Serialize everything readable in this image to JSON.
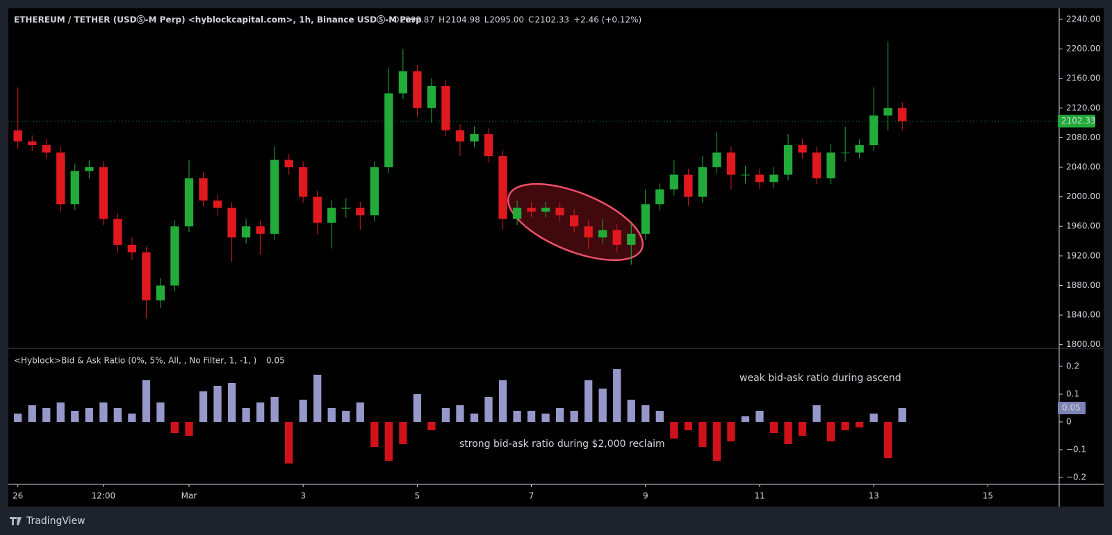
{
  "chart_data": [
    {
      "type": "candlestick",
      "title": "ETHEREUM / TETHER (USDⓈ-M Perp) <hyblockcapital.com>, 1h, Binance USDⓈ-M Perp",
      "ohlc_header": [
        {
          "key": "O",
          "text": "2099.87"
        },
        {
          "key": "H",
          "text": "2104.98"
        },
        {
          "key": "L",
          "text": "2095.00"
        },
        {
          "key": "C",
          "text": "2102.33"
        }
      ],
      "change": "+2.46 (+0.12%)",
      "x": [
        0,
        6,
        12,
        18,
        24,
        30,
        36,
        42,
        48,
        54,
        60,
        66,
        72,
        78,
        84,
        90,
        96,
        102,
        108,
        114,
        120,
        126,
        132,
        138,
        144,
        150,
        156,
        162,
        168,
        174,
        180,
        186,
        192,
        198,
        204,
        210,
        216,
        222,
        228,
        234,
        240,
        246,
        252,
        258,
        264,
        270,
        276,
        282,
        288,
        294,
        300,
        306,
        312,
        318,
        324,
        330,
        336,
        342,
        348,
        354,
        360,
        366,
        372
      ],
      "open": [
        2090,
        2075,
        2070,
        2060,
        1990,
        2035,
        2040,
        1970,
        1935,
        1925,
        1860,
        1880,
        1960,
        2025,
        1995,
        1985,
        1945,
        1960,
        1950,
        2050,
        2040,
        2000,
        1965,
        1985,
        1985,
        1975,
        2040,
        2140,
        2170,
        2120,
        2150,
        2090,
        2075,
        2085,
        2055,
        1970,
        1985,
        1980,
        1985,
        1975,
        1960,
        1945,
        1955,
        1935,
        1950,
        1990,
        2010,
        2030,
        2000,
        2040,
        2060,
        2030,
        2030,
        2020,
        2030,
        2070,
        2060,
        2025,
        2060,
        2060,
        2070,
        2110,
        2120
      ],
      "high": [
        2148,
        2083,
        2078,
        2068,
        2045,
        2050,
        2048,
        1978,
        1945,
        1932,
        1890,
        1968,
        2050,
        2033,
        2003,
        1993,
        1970,
        1968,
        2068,
        2058,
        2048,
        2008,
        1995,
        1998,
        1993,
        2048,
        2175,
        2200,
        2178,
        2160,
        2158,
        2098,
        2095,
        2093,
        2063,
        1995,
        1993,
        1993,
        1993,
        1983,
        1968,
        1970,
        1963,
        1965,
        2010,
        2018,
        2050,
        2038,
        2055,
        2088,
        2068,
        2042,
        2038,
        2040,
        2085,
        2078,
        2068,
        2072,
        2095,
        2078,
        2148,
        2210,
        2128
      ],
      "low": [
        2065,
        2062,
        2052,
        1980,
        1982,
        2025,
        1962,
        1925,
        1915,
        1835,
        1850,
        1872,
        1952,
        1987,
        1975,
        1912,
        1937,
        1922,
        1942,
        2030,
        1992,
        1950,
        1930,
        1972,
        1955,
        1967,
        2032,
        2132,
        2108,
        2100,
        2082,
        2055,
        2067,
        2047,
        1955,
        1962,
        1972,
        1972,
        1967,
        1952,
        1930,
        1937,
        1925,
        1908,
        1942,
        1982,
        2002,
        1988,
        1992,
        2032,
        2010,
        2018,
        2010,
        2012,
        2022,
        2052,
        2017,
        2017,
        2048,
        2052,
        2062,
        2090,
        2090
      ],
      "close": [
        2075,
        2070,
        2060,
        1990,
        2035,
        2040,
        1970,
        1935,
        1925,
        1860,
        1880,
        1960,
        2025,
        1995,
        1985,
        1945,
        1960,
        1950,
        2050,
        2040,
        2000,
        1965,
        1985,
        1985,
        1975,
        2040,
        2140,
        2170,
        2120,
        2150,
        2090,
        2075,
        2085,
        2055,
        1970,
        1985,
        1980,
        1985,
        1975,
        1960,
        1945,
        1955,
        1935,
        1950,
        1990,
        2010,
        2030,
        2000,
        2040,
        2060,
        2030,
        2030,
        2020,
        2030,
        2070,
        2060,
        2025,
        2060,
        2060,
        2070,
        2110,
        2120,
        2102.33
      ],
      "up_color": "#22ab3a",
      "down_color": "#e0191f",
      "xlim": [
        -4,
        438
      ],
      "ylim": [
        1795,
        2255
      ],
      "yticks": [
        {
          "value": 1800,
          "label": "1800.00"
        },
        {
          "value": 1840,
          "label": "1840.00"
        },
        {
          "value": 1880,
          "label": "1880.00"
        },
        {
          "value": 1920,
          "label": "1920.00"
        },
        {
          "value": 1960,
          "label": "1960.00"
        },
        {
          "value": 2000,
          "label": "2000.00"
        },
        {
          "value": 2040,
          "label": "2040.00"
        },
        {
          "value": 2080,
          "label": "2080.00"
        },
        {
          "value": 2120,
          "label": "2120.00"
        },
        {
          "value": 2160,
          "label": "2160.00"
        },
        {
          "value": 2200,
          "label": "2200.00"
        },
        {
          "value": 2240,
          "label": "2240.00"
        }
      ]
    },
    {
      "type": "histogram-bar",
      "title": "<Hyblock>Bid & Ask Ratio (0%, 5%, All, , No Filter, 1, -1, )",
      "x": [
        0,
        6,
        12,
        18,
        24,
        30,
        36,
        42,
        48,
        54,
        60,
        66,
        72,
        78,
        84,
        90,
        96,
        102,
        108,
        114,
        120,
        126,
        132,
        138,
        144,
        150,
        156,
        162,
        168,
        174,
        180,
        186,
        192,
        198,
        204,
        210,
        216,
        222,
        228,
        234,
        240,
        246,
        252,
        258,
        264,
        270,
        276,
        282,
        288,
        294,
        300,
        306,
        312,
        318,
        324,
        330,
        336,
        342,
        348,
        354,
        360,
        366,
        372
      ],
      "values": [
        0.03,
        0.06,
        0.05,
        0.07,
        0.04,
        0.05,
        0.07,
        0.05,
        0.03,
        0.15,
        0.07,
        -0.04,
        -0.05,
        0.11,
        0.13,
        0.14,
        0.05,
        0.07,
        0.09,
        -0.15,
        0.08,
        0.17,
        0.05,
        0.04,
        0.07,
        -0.09,
        -0.14,
        -0.08,
        0.1,
        -0.03,
        0.05,
        0.06,
        0.03,
        0.09,
        0.15,
        0.04,
        0.04,
        0.03,
        0.05,
        0.04,
        0.15,
        0.12,
        0.19,
        0.08,
        0.06,
        0.04,
        -0.06,
        -0.03,
        -0.09,
        -0.14,
        -0.07,
        0.02,
        0.04,
        -0.04,
        -0.08,
        -0.05,
        0.06,
        -0.07,
        -0.03,
        -0.02,
        0.03,
        -0.13,
        0.05
      ],
      "up_color": "#9598c8",
      "down_color": "#d1111a",
      "annotations": [
        "weak bid-ask ratio during ascend",
        "strong bid-ask ratio during $2,000 reclaim"
      ],
      "xlim": [
        -4,
        438
      ],
      "ylim": [
        -0.225,
        0.26
      ],
      "yticks": [
        0.2,
        0.1,
        0,
        {
          "value": -0.1,
          "label": "−0.1"
        },
        {
          "value": -0.2,
          "label": "−0.2"
        }
      ],
      "xticks": [
        {
          "value": 0,
          "label": "26"
        },
        {
          "value": 36,
          "label": "12:00"
        },
        {
          "value": 72,
          "label": "Mar"
        },
        {
          "value": 120,
          "label": "3"
        },
        {
          "value": 168,
          "label": "5"
        },
        {
          "value": 216,
          "label": "7"
        },
        {
          "value": 264,
          "label": "9"
        },
        {
          "value": 312,
          "label": "11"
        },
        {
          "value": 360,
          "label": "13"
        },
        {
          "value": 408,
          "label": "15"
        }
      ]
    }
  ],
  "footer": {
    "brand": "TradingView"
  }
}
